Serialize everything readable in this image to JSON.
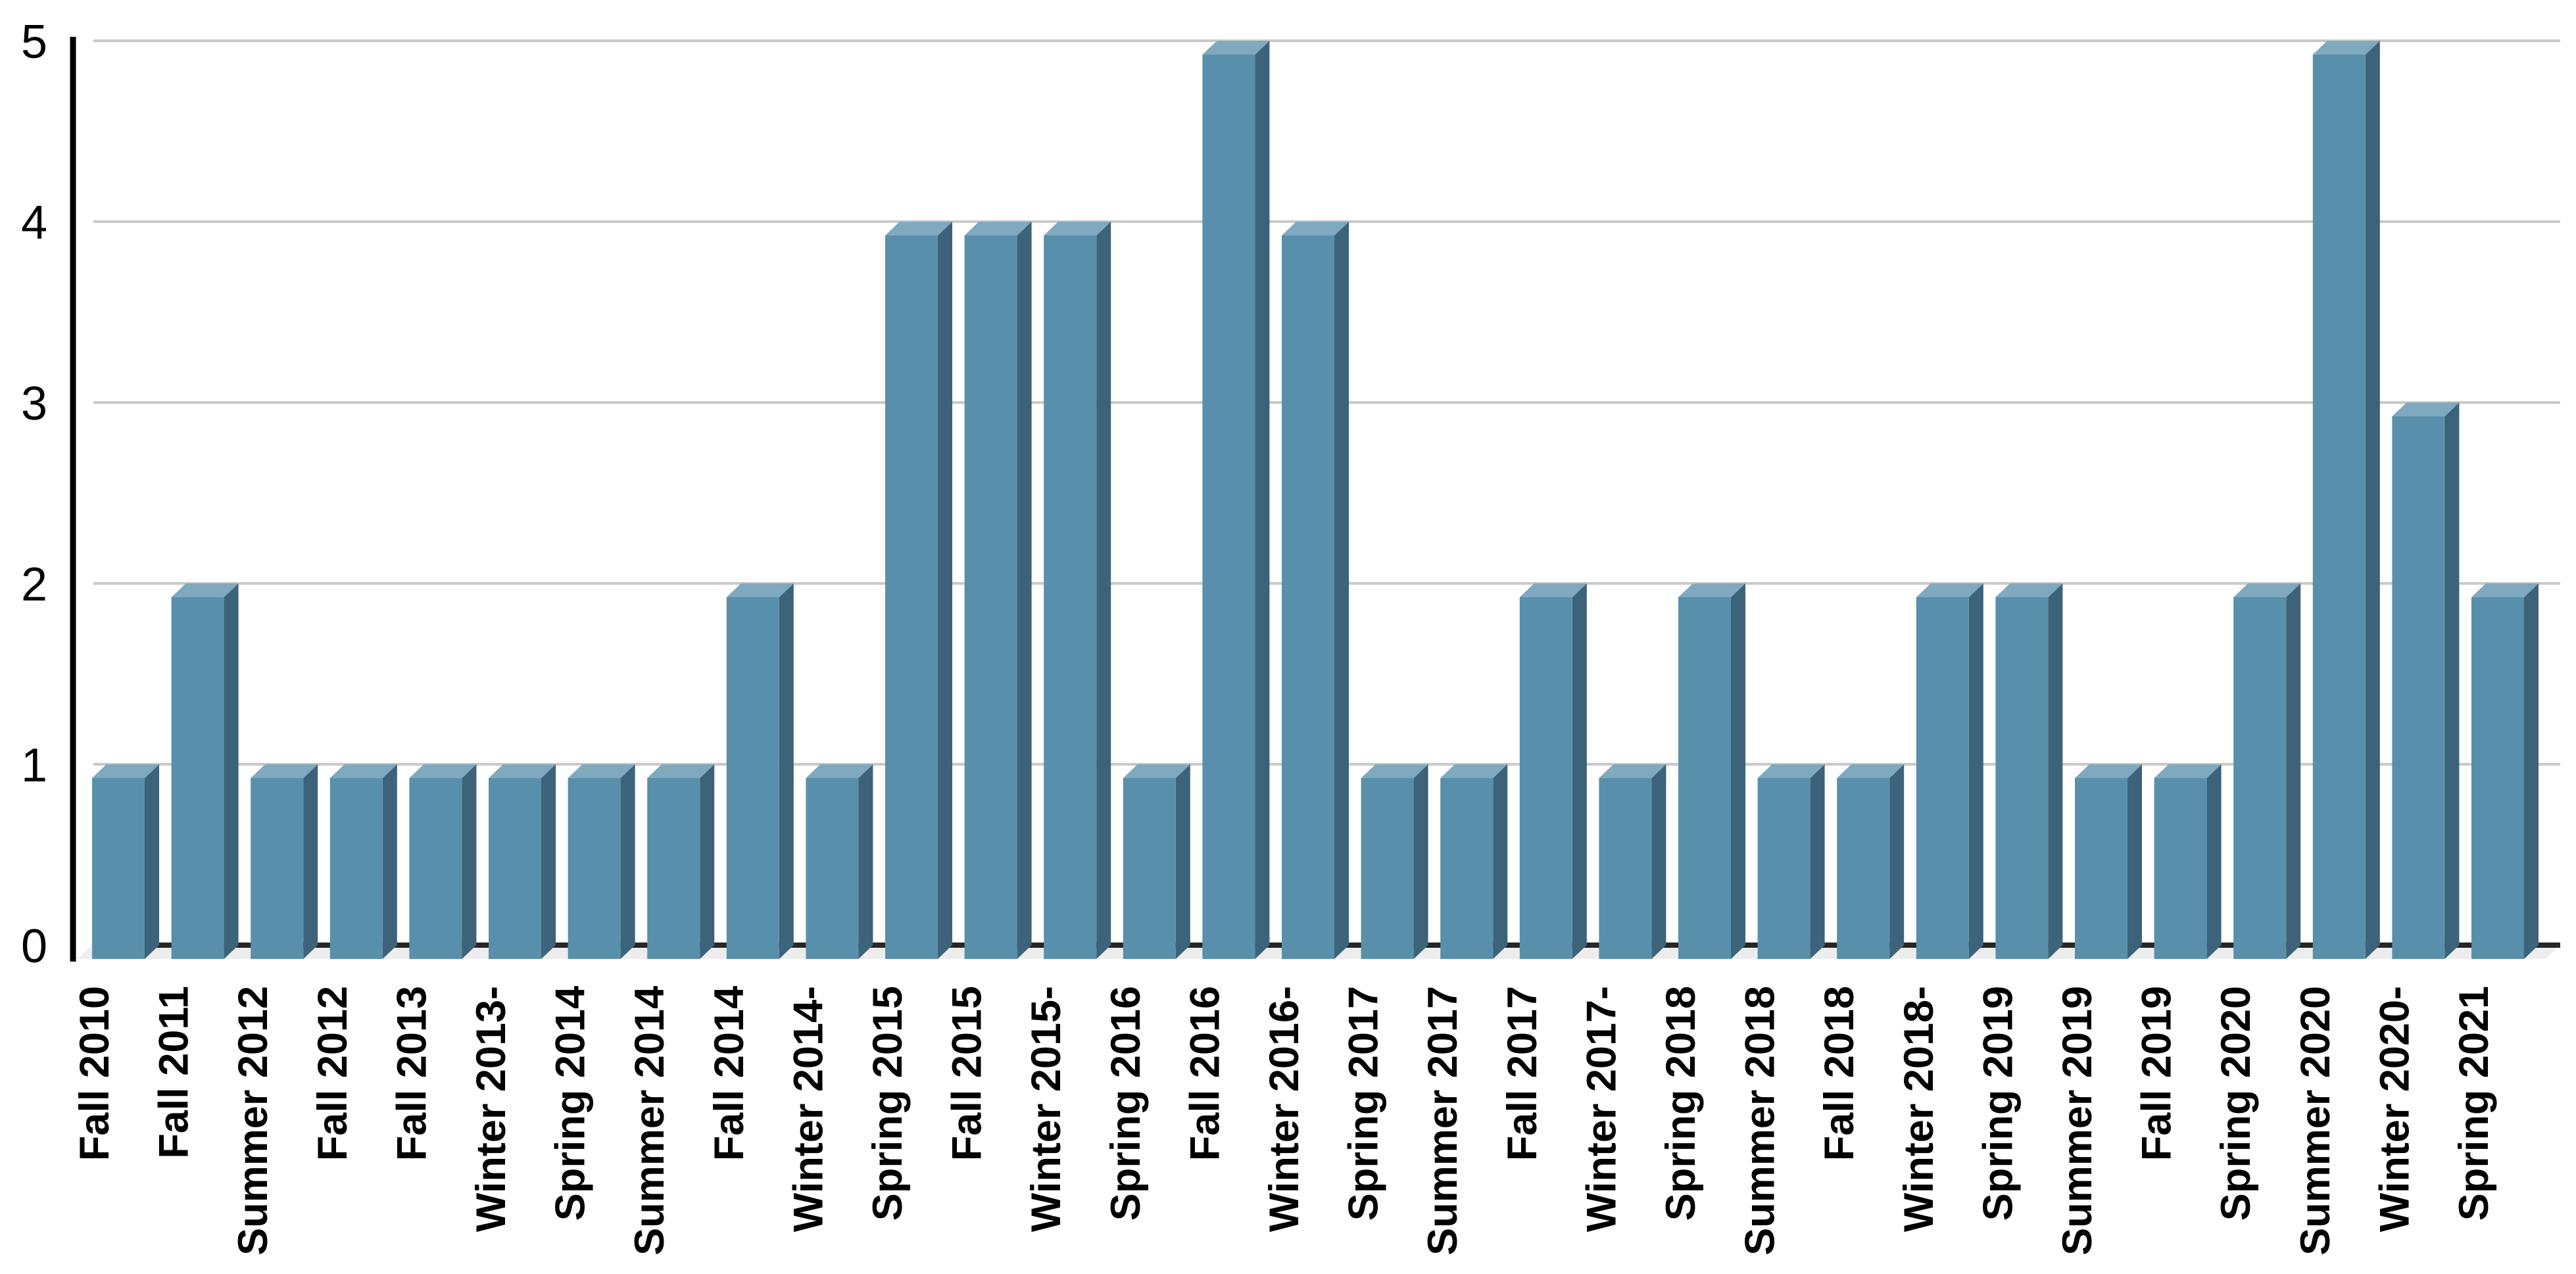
{
  "chart_data": {
    "type": "bar",
    "title": "",
    "xlabel": "",
    "ylabel": "",
    "ylim": [
      0,
      5
    ],
    "y_ticks": [
      0,
      1,
      2,
      3,
      4,
      5
    ],
    "grid": "horizontal",
    "legend": "none",
    "style": "3d-effect-bars",
    "categories": [
      "Fall 2010",
      "Fall 2011",
      "Summer 2012",
      "Fall 2012",
      "Fall 2013",
      "Winter 2013-",
      "Spring 2014",
      "Summer 2014",
      "Fall 2014",
      "Winter 2014-",
      "Spring 2015",
      "Fall 2015",
      "Winter 2015-",
      "Spring 2016",
      "Fall 2016",
      "Winter 2016-",
      "Spring 2017",
      "Summer 2017",
      "Fall 2017",
      "Winter 2017-",
      "Spring 2018",
      "Summer 2018",
      "Fall 2018",
      "Winter 2018-",
      "Spring 2019",
      "Summer 2019",
      "Fall 2019",
      "Spring 2020",
      "Summer 2020",
      "Winter 2020-",
      "Spring 2021"
    ],
    "values": [
      1,
      2,
      1,
      1,
      1,
      1,
      1,
      1,
      2,
      1,
      4,
      4,
      4,
      1,
      5,
      4,
      1,
      1,
      2,
      1,
      2,
      1,
      1,
      2,
      2,
      1,
      1,
      2,
      5,
      3,
      2
    ],
    "colors": {
      "bar_front": "#5890ac",
      "bar_side": "#3c6379",
      "bar_top": "#7fa9bf",
      "gridline": "#c9c9c9",
      "baseline": "#262626",
      "floor": "#ededed",
      "axis": "#000000",
      "text": "#000000",
      "background": "#ffffff"
    }
  }
}
